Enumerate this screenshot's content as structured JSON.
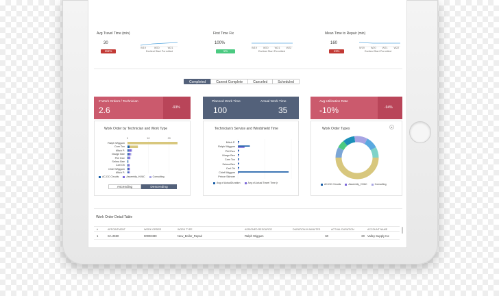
{
  "metrics": [
    {
      "title": "Avg Travel Time (min)",
      "value": "30",
      "badge": "111%",
      "badge_color": "#c23934",
      "ticks": [
        "W19",
        "W20",
        "W21"
      ],
      "caption": "Earliest Start Permitted"
    },
    {
      "title": "First Time Fix",
      "value": "100%",
      "badge": "1%",
      "badge_color": "#4bca81",
      "ticks": [
        "W19",
        "W20",
        "W21",
        "W22"
      ],
      "caption": "Earliest Start Permitted"
    },
    {
      "title": "Mean Time to Repair (min)",
      "value": "160",
      "badge": "11%",
      "badge_color": "#c23934",
      "ticks": [
        "W19",
        "W20",
        "W21",
        "W22"
      ],
      "caption": "Earliest Start Permitted"
    }
  ],
  "status_tabs": [
    "Completed",
    "Cannot Complete",
    "Canceled",
    "Scheduled"
  ],
  "active_tab": 0,
  "kpis": [
    {
      "label": "# Work Orders / Technician",
      "value": "2.6",
      "pct": "-93%",
      "color": "#cb5a6d",
      "pct_bg": "#b94559"
    },
    {
      "label": "Planned Work Time",
      "value": "100",
      "label2": "Actual Work Time",
      "value2": "35",
      "color": "#53617a"
    },
    {
      "label": "Avg Utilization Rate",
      "value": "-10%",
      "pct": "-94%",
      "color": "#cb5a6d",
      "pct_bg": "#b94559"
    }
  ],
  "charts": {
    "work_type": {
      "title": "Work Order by Technician and Work Type",
      "axis_ticks": [
        "0",
        "10",
        "20"
      ],
      "legend": [
        {
          "name": "AC-DC Circuits",
          "color": "#1b5fa8"
        },
        {
          "name": "Assembly_HVAC",
          "color": "#7b68d9"
        },
        {
          "name": "Consulting",
          "color": "#a7a4e3"
        }
      ],
      "sort_buttons": [
        "Ascending",
        "Descending"
      ],
      "active_sort": 1
    },
    "service_time": {
      "title": "Technician's Service and Windshield Time",
      "legend": [
        {
          "name": "Avg of ActualDuration",
          "color": "#1b5fa8"
        },
        {
          "name": "Avg of Actual Travel Time (r",
          "color": "#7b68d9"
        }
      ]
    },
    "work_order_types": {
      "title": "Work Order Types",
      "legend": [
        {
          "name": "AC-DC Circuits",
          "color": "#1b5fa8"
        },
        {
          "name": "Assembly_HVAC",
          "color": "#7b68d9"
        },
        {
          "name": "Consulting",
          "color": "#a7a4e3"
        }
      ]
    }
  },
  "chart_data": [
    {
      "type": "bar",
      "title": "Work Order by Technician and Work Type",
      "categories": [
        "Ralph Wiggum",
        "Cam Too",
        "Mitch P.",
        "Marge Bee",
        "Phil Dee",
        "Selma Bee",
        "Carl Oh",
        "Chief Wiggum",
        "Mitch P."
      ],
      "series": [
        {
          "name": "AC-DC Circuits",
          "values": [
            0,
            1,
            0.6,
            0.6,
            0.4,
            0.4,
            0.4,
            0.5,
            0.5
          ]
        },
        {
          "name": "Assembly_HVAC",
          "values": [
            0,
            0,
            1.2,
            0.8,
            0.7,
            0,
            0.6,
            0.6,
            0.4
          ]
        },
        {
          "name": "Consulting",
          "values": [
            0,
            0,
            0.4,
            0.4,
            0.3,
            0,
            0,
            0,
            0.3
          ]
        },
        {
          "name": "",
          "values": [
            24,
            4,
            0,
            0,
            0,
            0,
            0,
            0,
            0
          ]
        }
      ],
      "xlim": [
        0,
        25
      ],
      "orientation": "horizontal"
    },
    {
      "type": "bar",
      "title": "Technician's Service and Windshield Time",
      "categories": [
        "Mitch P.",
        "Ralph Wiggum",
        "Phil Dee",
        "Marge Bee",
        "Cam Too",
        "Selma Bee",
        "Carl Oh",
        "Chief Wiggum",
        "Prince Skinner"
      ],
      "series": [
        {
          "name": "Avg of ActualDuration",
          "values": [
            1,
            9,
            1,
            1,
            1,
            1,
            1,
            38,
            0
          ]
        },
        {
          "name": "Avg of Actual Travel Time (r",
          "values": [
            0.5,
            5,
            0.5,
            0.5,
            0.5,
            0.5,
            0.5,
            0.5,
            0
          ]
        }
      ],
      "xlim": [
        0,
        40
      ],
      "orientation": "horizontal"
    },
    {
      "type": "pie",
      "title": "Work Order Types",
      "categories": [
        "Assembly_HVAC",
        "Consulting",
        "AC-DC Circuits",
        "Other A",
        "Other B",
        "Other C",
        "Other D"
      ],
      "values": [
        50,
        8,
        6,
        9,
        10,
        9,
        8
      ],
      "colors": [
        "#d8c77d",
        "#7ba6d6",
        "#4bca81",
        "#1b8fb8",
        "#a7a4e3",
        "#5aa9e0",
        "#7fd3c8"
      ]
    }
  ],
  "table": {
    "title": "Work Order Detail Table",
    "headers": [
      "#",
      "Appointment",
      "Work Order",
      "Work Type",
      "Assigned Resource",
      "Duration in Minutes",
      "Actual Duration",
      "Account Name"
    ],
    "rows": [
      [
        "1",
        "SA-2590",
        "00000490",
        "New_Boiler_Repair",
        "Ralph Wiggum",
        "60",
        "60",
        "Valley Supply Inc"
      ]
    ]
  }
}
